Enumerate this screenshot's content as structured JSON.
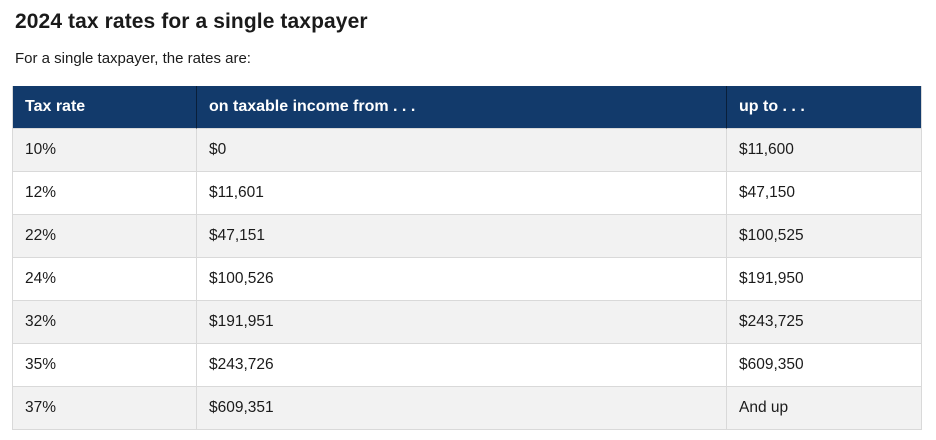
{
  "page": {
    "title": "2024 tax rates for a single taxpayer",
    "subtitle": "For a single taxpayer, the rates are:"
  },
  "table": {
    "headers": [
      "Tax rate",
      "on taxable income from . . .",
      "up to . . ."
    ],
    "rows": [
      [
        "10%",
        "$0",
        "$11,600"
      ],
      [
        "12%",
        "$11,601",
        "$47,150"
      ],
      [
        "22%",
        "$47,151",
        "$100,525"
      ],
      [
        "24%",
        "$100,526",
        "$191,950"
      ],
      [
        "32%",
        "$191,951",
        "$243,725"
      ],
      [
        "35%",
        "$243,726",
        "$609,350"
      ],
      [
        "37%",
        "$609,351",
        "And up"
      ]
    ],
    "colors": {
      "header_bg": "#123a6b",
      "header_text": "#ffffff",
      "stripe_bg": "#f2f2f2",
      "row_bg": "#ffffff",
      "border": "#d9d9d9",
      "text": "#1b1b1b"
    }
  }
}
